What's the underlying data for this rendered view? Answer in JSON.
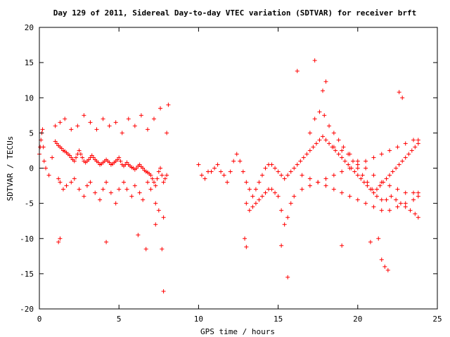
{
  "chart_data": {
    "type": "scatter",
    "title": "Day 129 of 2011, Sidereal Day-to-day VTEC variation (SDTVAR) for receiver brft",
    "xlabel": "GPS time / hours",
    "ylabel": "SDTVAR / TECUs",
    "xlim": [
      0,
      25
    ],
    "ylim": [
      -20,
      20
    ],
    "xticks": [
      0,
      5,
      10,
      15,
      20,
      25
    ],
    "yticks": [
      -20,
      -15,
      -10,
      -5,
      0,
      5,
      10,
      15,
      20
    ],
    "marker": "+",
    "color": "#ff0000",
    "grid": false,
    "legend": "none",
    "series": [
      {
        "x": [
          0.0,
          0.05,
          0.1,
          0.15,
          0.2,
          0.25,
          0.3,
          0.4,
          0.6,
          0.8,
          1.0,
          1.1,
          1.2,
          1.3,
          1.4,
          1.5,
          1.6,
          1.7,
          1.8,
          1.9,
          2.0,
          2.1,
          2.2,
          2.3,
          2.4,
          2.5,
          2.6,
          2.7,
          2.8,
          2.9,
          3.0,
          3.1,
          3.2,
          3.3,
          3.4,
          3.5,
          3.6,
          3.7,
          3.8,
          3.9,
          4.0,
          4.1,
          4.2,
          4.3,
          4.4,
          4.5,
          4.6,
          4.7,
          4.8,
          4.9,
          5.0,
          5.1,
          5.2,
          5.3,
          5.4,
          5.5,
          5.6,
          5.7,
          5.8,
          5.9,
          6.0,
          6.1,
          6.2,
          6.3,
          6.4,
          6.5,
          6.6,
          6.7,
          6.8,
          6.9,
          7.0,
          7.1,
          7.2,
          7.3,
          7.4,
          7.5,
          7.6,
          7.7,
          7.8,
          7.9,
          8.0,
          1.2,
          1.3,
          1.5,
          1.7,
          2.0,
          2.2,
          2.5,
          2.8,
          3.0,
          3.2,
          3.5,
          3.8,
          4.0,
          4.2,
          4.5,
          4.8,
          5.0,
          5.3,
          5.5,
          5.8,
          6.0,
          6.3,
          6.5,
          6.8,
          7.0,
          7.3,
          7.5,
          7.8,
          1.0,
          1.3,
          1.6,
          2.0,
          2.4,
          2.8,
          3.2,
          3.6,
          4.0,
          4.4,
          4.8,
          5.2,
          5.6,
          6.0,
          6.4,
          6.8,
          7.2,
          7.6,
          8.0,
          10.0,
          10.2,
          10.4,
          10.6,
          10.8,
          11.0,
          11.2,
          11.4,
          11.6,
          11.8,
          12.0,
          12.2,
          12.4,
          12.6,
          12.8,
          13.0,
          13.2,
          13.4,
          13.6,
          13.8,
          14.0,
          14.2,
          14.4,
          14.6,
          14.8,
          15.0,
          15.2,
          15.4,
          15.6,
          15.8,
          16.0,
          16.2,
          16.4,
          16.6,
          16.8,
          17.0,
          17.2,
          17.4,
          17.6,
          17.8,
          18.0,
          18.2,
          18.4,
          18.6,
          18.8,
          19.0,
          19.2,
          19.4,
          19.6,
          19.8,
          20.0,
          20.2,
          20.4,
          20.6,
          20.8,
          21.0,
          21.2,
          21.4,
          21.6,
          21.8,
          22.0,
          22.2,
          22.4,
          22.6,
          22.8,
          23.0,
          23.2,
          23.4,
          23.6,
          23.8,
          13.0,
          13.2,
          13.4,
          13.6,
          13.8,
          14.0,
          14.2,
          14.4,
          14.6,
          14.8,
          15.0,
          15.2,
          15.4,
          15.6,
          15.8,
          16.0,
          16.5,
          17.0,
          17.5,
          18.0,
          18.5,
          19.0,
          19.5,
          20.0,
          20.5,
          21.0,
          21.5,
          22.0,
          22.5,
          23.0,
          23.5,
          23.8,
          17.0,
          17.3,
          17.6,
          17.9,
          18.2,
          18.5,
          18.8,
          19.1,
          19.4,
          19.7,
          20.0,
          20.3,
          20.6,
          20.9,
          21.2,
          21.5,
          21.8,
          22.1,
          22.4,
          22.7,
          23.0,
          23.3,
          23.6,
          23.8,
          18.5,
          19.0,
          19.5,
          20.0,
          20.5,
          21.0,
          21.5,
          22.0,
          22.5,
          23.0,
          23.5,
          23.8,
          16.5,
          17.0,
          17.5,
          18.0,
          18.5,
          19.0,
          19.5,
          20.0,
          20.5,
          21.0,
          21.5,
          22.0,
          22.5,
          23.0,
          23.5,
          23.8,
          17.3,
          16.2,
          18.0,
          17.8,
          22.6,
          22.8,
          21.5,
          21.7,
          21.9,
          21.3,
          20.8,
          19.0,
          15.6,
          15.2,
          13.0,
          12.9,
          7.8,
          7.7,
          6.7,
          6.2,
          4.2,
          1.3,
          1.2,
          7.3,
          8.1
        ],
        "y": [
          2.0,
          3.0,
          4.0,
          5.0,
          5.5,
          3.0,
          1.0,
          0.0,
          -1.0,
          1.5,
          3.8,
          3.5,
          3.2,
          3.0,
          2.8,
          2.5,
          2.4,
          2.2,
          2.0,
          1.8,
          1.5,
          1.2,
          1.0,
          1.5,
          2.0,
          2.5,
          2.0,
          1.5,
          1.0,
          0.8,
          1.0,
          1.2,
          1.5,
          1.8,
          1.5,
          1.2,
          1.0,
          0.8,
          0.5,
          0.6,
          0.8,
          1.0,
          1.2,
          1.0,
          0.8,
          0.5,
          0.6,
          0.8,
          1.0,
          1.2,
          1.5,
          1.0,
          0.5,
          0.3,
          0.5,
          0.8,
          0.5,
          0.3,
          0.1,
          0.0,
          -0.2,
          0.0,
          0.3,
          0.5,
          0.2,
          0.0,
          -0.3,
          -0.5,
          -0.6,
          -0.8,
          -1.0,
          -1.5,
          -2.0,
          -2.5,
          -1.5,
          -0.5,
          0.0,
          -1.0,
          -2.0,
          -1.5,
          -1.0,
          -1.5,
          -2.0,
          -3.0,
          -2.5,
          -2.0,
          -1.5,
          -3.0,
          -4.0,
          -2.5,
          -2.0,
          -3.5,
          -4.5,
          -3.0,
          -2.0,
          -3.5,
          -5.0,
          -3.0,
          -2.0,
          -3.0,
          -4.0,
          -2.5,
          -3.5,
          -4.5,
          -2.0,
          -3.0,
          -5.0,
          -6.0,
          -7.0,
          6.0,
          6.5,
          7.0,
          5.5,
          6.0,
          7.5,
          6.5,
          5.5,
          7.0,
          6.0,
          6.5,
          5.0,
          7.0,
          6.0,
          7.5,
          5.5,
          7.0,
          8.5,
          5.0,
          0.5,
          -1.0,
          -1.5,
          -0.5,
          -0.5,
          0.0,
          0.5,
          -0.5,
          -1.0,
          -2.0,
          -0.5,
          1.0,
          2.0,
          1.0,
          -0.5,
          -2.0,
          -3.0,
          -4.0,
          -3.0,
          -2.0,
          -1.0,
          0.0,
          0.5,
          0.5,
          0.0,
          -0.5,
          -1.0,
          -1.5,
          -1.0,
          -0.5,
          0.0,
          0.5,
          1.0,
          1.5,
          2.0,
          2.5,
          3.0,
          3.5,
          4.0,
          4.5,
          4.0,
          3.5,
          3.0,
          2.5,
          2.0,
          1.5,
          1.0,
          0.5,
          0.0,
          -0.5,
          -1.0,
          -1.5,
          -2.0,
          -2.5,
          -3.0,
          -3.5,
          -3.0,
          -2.5,
          -2.0,
          -1.5,
          -1.0,
          -0.5,
          0.0,
          0.5,
          1.0,
          1.5,
          2.0,
          2.5,
          3.0,
          3.5,
          -5.0,
          -6.0,
          -5.5,
          -5.0,
          -4.5,
          -4.0,
          -3.5,
          -3.0,
          -3.0,
          -3.5,
          -4.0,
          -6.0,
          -8.0,
          -7.0,
          -5.0,
          -4.0,
          -3.0,
          -2.5,
          -2.0,
          -1.5,
          -1.0,
          -0.5,
          0.0,
          0.5,
          1.0,
          1.5,
          2.0,
          2.5,
          3.0,
          3.5,
          4.0,
          4.0,
          5.0,
          7.0,
          8.0,
          7.5,
          6.0,
          5.0,
          4.0,
          3.0,
          2.0,
          1.0,
          0.0,
          -1.0,
          -2.0,
          -3.0,
          -4.0,
          -4.5,
          -4.5,
          -4.0,
          -4.5,
          -5.0,
          -5.5,
          -6.0,
          -6.5,
          -7.0,
          3.0,
          2.5,
          2.0,
          1.0,
          0.0,
          -1.0,
          -2.0,
          -2.5,
          -3.0,
          -3.5,
          -3.5,
          -3.5,
          -1.0,
          -1.5,
          -2.0,
          -2.5,
          -3.0,
          -3.5,
          -4.0,
          -4.5,
          -5.0,
          -5.5,
          -6.0,
          -6.0,
          -5.5,
          -5.0,
          -4.5,
          -4.0,
          15.3,
          13.8,
          12.3,
          11.0,
          10.8,
          10.0,
          -13.0,
          -14.0,
          -14.5,
          -10.0,
          -10.5,
          -11.0,
          -15.5,
          -11.0,
          -11.2,
          -10.0,
          -17.5,
          -11.5,
          -11.5,
          -9.5,
          -10.5,
          -10.0,
          -10.5,
          -8.0,
          9.0
        ]
      }
    ]
  }
}
